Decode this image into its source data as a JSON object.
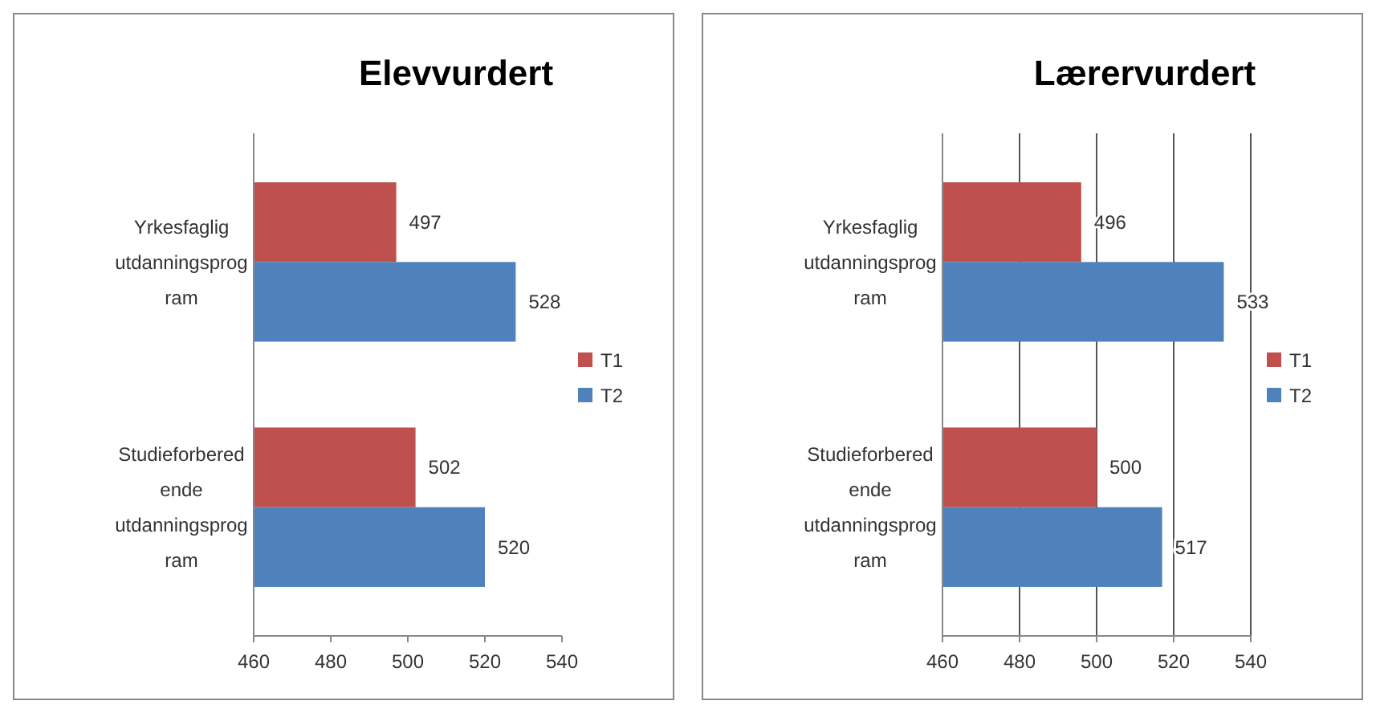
{
  "chart_data": [
    {
      "type": "bar",
      "title": "Elevvurdert",
      "orientation": "horizontal",
      "categories": [
        "Yrkesfaglig utdanningsprogram",
        "Studieforberedende utdanningsprogram"
      ],
      "series": [
        {
          "name": "T1",
          "color": "#c0504d",
          "values": [
            497,
            502
          ]
        },
        {
          "name": "T2",
          "color": "#4f81bd",
          "values": [
            528,
            520
          ]
        }
      ],
      "xlim": [
        460,
        540
      ],
      "xticks": [
        460,
        480,
        500,
        520,
        540
      ],
      "grid": false,
      "legend": "right",
      "data_labels": true
    },
    {
      "type": "bar",
      "title": "Lærervurdert",
      "orientation": "horizontal",
      "categories": [
        "Yrkesfaglig utdanningsprogram",
        "Studieforberedende utdanningsprogram"
      ],
      "series": [
        {
          "name": "T1",
          "color": "#c0504d",
          "values": [
            496,
            500
          ]
        },
        {
          "name": "T2",
          "color": "#4f81bd",
          "values": [
            533,
            517
          ]
        }
      ],
      "xlim": [
        460,
        540
      ],
      "xticks": [
        460,
        480,
        500,
        520,
        540
      ],
      "grid": "x",
      "legend": "right",
      "data_labels": true
    }
  ]
}
